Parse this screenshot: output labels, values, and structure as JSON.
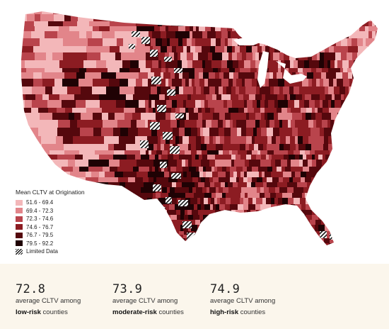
{
  "legend": {
    "title": "Mean CLTV at Origination",
    "items": [
      {
        "label": "51.6 - 69.4",
        "color": "#f3b7b9"
      },
      {
        "label": "69.4 - 72.3",
        "color": "#e2858a"
      },
      {
        "label": "72.3 - 74.6",
        "color": "#b9444c"
      },
      {
        "label": "74.6 - 76.7",
        "color": "#8c1c22"
      },
      {
        "label": "76.7 - 79.5",
        "color": "#55080d"
      },
      {
        "label": "79.5 - 92.2",
        "color": "#1f0204"
      }
    ],
    "limited_label": "Limited Data"
  },
  "stats": [
    {
      "value": "72.8",
      "line1": "average CLTV among",
      "risk": "low-risk",
      "suffix": " counties"
    },
    {
      "value": "73.9",
      "line1": "average CLTV among",
      "risk": "moderate-risk",
      "suffix": " counties"
    },
    {
      "value": "74.9",
      "line1": "average CLTV among",
      "risk": "high-risk",
      "suffix": " counties"
    }
  ]
}
